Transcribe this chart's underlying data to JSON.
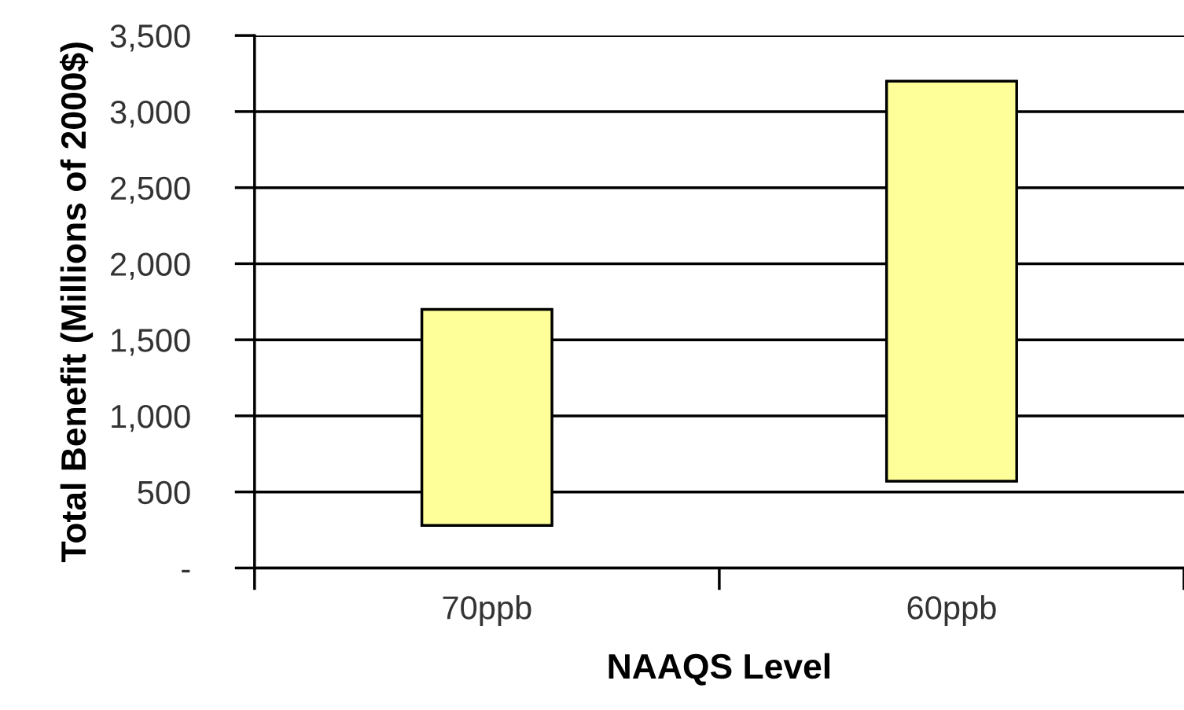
{
  "chart_data": {
    "type": "bar",
    "xlabel": "NAAQS Level",
    "ylabel": "Total Benefit (Millions of 2000$)",
    "categories": [
      "70ppb",
      "60ppb"
    ],
    "base": [
      280,
      570
    ],
    "values": [
      1420,
      2630
    ],
    "color": "#ffff99",
    "ylim": [
      0,
      3500
    ],
    "yticks": [
      {
        "value": 0,
        "label": "-"
      },
      500,
      {
        "value": 1000,
        "label": "1,000"
      },
      {
        "value": 1500,
        "label": "1,500"
      },
      {
        "value": 2000,
        "label": "2,000"
      },
      {
        "value": 2500,
        "label": "2,500"
      },
      {
        "value": 3000,
        "label": "3,000"
      },
      {
        "value": 3500,
        "label": "3,500"
      }
    ],
    "grid": "y",
    "legend": false
  }
}
